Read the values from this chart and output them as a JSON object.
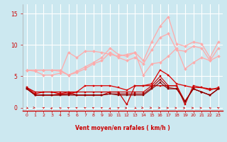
{
  "x": [
    0,
    1,
    2,
    3,
    4,
    5,
    6,
    7,
    8,
    9,
    10,
    11,
    12,
    13,
    14,
    15,
    16,
    17,
    18,
    19,
    20,
    21,
    22,
    23
  ],
  "background_color": "#cce8f0",
  "grid_color": "#ffffff",
  "xlabel": "Vent moyen/en rafales ( km/h )",
  "xlabel_color": "#cc0000",
  "tick_color": "#cc0000",
  "ylim": [
    -0.5,
    16.5
  ],
  "yticks": [
    0,
    5,
    10,
    15
  ],
  "lines": [
    {
      "y": [
        6.0,
        6.0,
        6.0,
        6.0,
        6.0,
        5.2,
        5.8,
        6.5,
        7.2,
        8.0,
        9.5,
        8.5,
        8.2,
        8.8,
        7.5,
        10.5,
        13.0,
        14.5,
        10.2,
        9.8,
        10.5,
        10.2,
        8.0,
        10.5
      ],
      "color": "#ffaaaa",
      "linewidth": 0.9,
      "marker": "D",
      "markersize": 2.0,
      "zorder": 3
    },
    {
      "y": [
        6.0,
        6.0,
        6.0,
        6.0,
        5.8,
        5.2,
        5.6,
        6.2,
        7.0,
        7.5,
        8.8,
        8.0,
        7.5,
        8.0,
        7.0,
        9.2,
        11.2,
        11.8,
        9.2,
        9.0,
        9.8,
        9.5,
        7.5,
        9.5
      ],
      "color": "#ffaaaa",
      "linewidth": 0.9,
      "marker": "D",
      "markersize": 2.0,
      "zorder": 3
    },
    {
      "y": [
        6.0,
        5.8,
        5.2,
        5.2,
        5.5,
        8.8,
        8.0,
        9.0,
        9.0,
        8.8,
        8.5,
        8.2,
        8.5,
        8.8,
        5.2,
        7.0,
        7.2,
        8.2,
        9.5,
        6.2,
        7.2,
        8.0,
        7.5,
        8.2
      ],
      "color": "#ffaaaa",
      "linewidth": 0.9,
      "marker": "D",
      "markersize": 2.0,
      "zorder": 3
    },
    {
      "y": [
        3.2,
        2.2,
        2.5,
        2.5,
        2.2,
        2.2,
        2.5,
        3.5,
        3.5,
        3.5,
        3.5,
        3.2,
        2.8,
        3.5,
        3.5,
        3.8,
        6.0,
        5.2,
        3.8,
        3.5,
        3.2,
        3.2,
        2.8,
        3.2
      ],
      "color": "#dd0000",
      "linewidth": 0.9,
      "marker": "s",
      "markersize": 2.0,
      "zorder": 4
    },
    {
      "y": [
        3.2,
        2.5,
        2.5,
        2.5,
        2.5,
        2.5,
        2.5,
        2.5,
        2.5,
        2.5,
        2.5,
        2.5,
        0.5,
        3.5,
        3.5,
        3.5,
        3.5,
        3.5,
        3.5,
        0.5,
        3.5,
        3.2,
        3.0,
        3.0
      ],
      "color": "#cc0000",
      "linewidth": 0.9,
      "marker": "s",
      "markersize": 2.0,
      "zorder": 4
    },
    {
      "y": [
        3.0,
        2.0,
        2.0,
        2.0,
        2.2,
        2.5,
        2.0,
        2.0,
        2.0,
        2.0,
        2.5,
        2.5,
        2.5,
        2.5,
        2.5,
        3.5,
        5.0,
        3.5,
        3.5,
        1.0,
        3.0,
        2.5,
        2.0,
        3.0
      ],
      "color": "#cc0000",
      "linewidth": 0.8,
      "marker": "s",
      "markersize": 1.8,
      "zorder": 4
    },
    {
      "y": [
        3.0,
        2.0,
        2.0,
        2.0,
        2.0,
        2.2,
        2.0,
        2.0,
        2.0,
        2.0,
        2.2,
        2.2,
        2.2,
        2.2,
        2.2,
        3.2,
        4.5,
        3.2,
        3.0,
        1.0,
        3.0,
        2.5,
        2.0,
        3.0
      ],
      "color": "#aa0000",
      "linewidth": 0.8,
      "marker": "s",
      "markersize": 1.8,
      "zorder": 4
    },
    {
      "y": [
        3.0,
        2.0,
        2.0,
        2.0,
        2.0,
        2.0,
        2.0,
        2.0,
        2.0,
        2.0,
        2.2,
        2.0,
        2.0,
        2.0,
        2.0,
        3.0,
        4.0,
        3.0,
        3.0,
        1.0,
        3.0,
        2.5,
        2.0,
        3.0
      ],
      "color": "#880000",
      "linewidth": 0.8,
      "marker": "s",
      "markersize": 1.8,
      "zorder": 4
    }
  ],
  "arrow_angles": [
    45,
    60,
    150,
    165,
    200,
    210,
    220,
    215,
    220,
    215,
    175,
    155,
    90,
    45,
    65,
    70,
    80,
    90,
    95,
    100,
    90,
    95,
    200,
    205
  ]
}
